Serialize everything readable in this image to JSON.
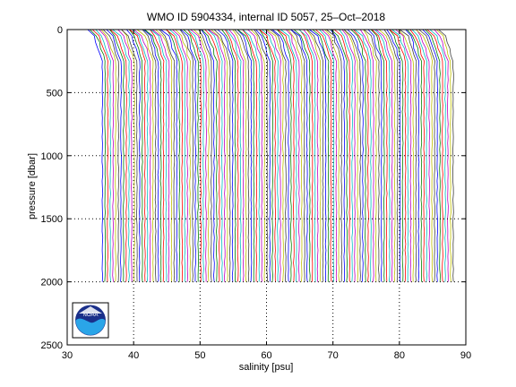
{
  "chart_data": {
    "type": "line",
    "title": "WMO ID 5904334, internal ID 5057, 25–Oct–2018",
    "xlabel": "salinity [psu]",
    "ylabel": "pressure [dbar]",
    "xlim": [
      30,
      90
    ],
    "ylim": [
      0,
      2500
    ],
    "y_reversed": true,
    "x_ticks": [
      30,
      40,
      50,
      60,
      70,
      80,
      90
    ],
    "y_ticks": [
      0,
      500,
      1000,
      1500,
      2000,
      2500
    ],
    "x_tick_labels": [
      "30",
      "40",
      "50",
      "60",
      "70",
      "80",
      "90"
    ],
    "y_tick_labels": [
      "0",
      "500",
      "1000",
      "1500",
      "2000",
      "2500"
    ],
    "grid": "dotted",
    "profile_style": "waterfall",
    "profile_count": 133,
    "first_profile_deep_salinity": 35.3,
    "profile_offset_psu": 0.4,
    "max_pressure": 2000,
    "series_colors": [
      "#0000ff",
      "#008000",
      "#ff0000",
      "#00bfbf",
      "#bf00bf",
      "#bfbf00",
      "#404040"
    ],
    "logo": "NOAA"
  }
}
